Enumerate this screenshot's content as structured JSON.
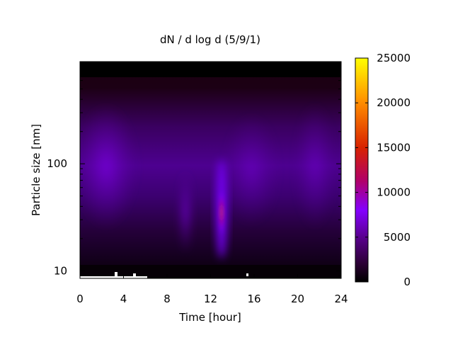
{
  "chart_data": {
    "type": "heatmap",
    "title": "dN / d log d (5/9/1)",
    "xlabel": "Time [hour]",
    "ylabel": "Particle size [nm]",
    "x_ticks": [
      0,
      4,
      8,
      12,
      16,
      20,
      24
    ],
    "xlim": [
      0,
      24
    ],
    "y_scale": "log",
    "ylim": [
      8.5,
      900
    ],
    "y_tick_labels": [
      {
        "value": 10,
        "label": "10"
      },
      {
        "value": 100,
        "label": "100"
      }
    ],
    "colorbar": {
      "ticks": [
        0,
        5000,
        10000,
        15000,
        20000,
        25000
      ],
      "range": [
        0,
        25000
      ],
      "colors": [
        "#000000",
        "#2b0033",
        "#5a008f",
        "#8400ff",
        "#b0006a",
        "#d82200",
        "#ff8c00",
        "#ffff00"
      ]
    },
    "grid": false,
    "features": [
      {
        "time": 13.0,
        "size_range": [
          25,
          60
        ],
        "value": 12000,
        "note": "peak"
      },
      {
        "time": 9.7,
        "size_range": [
          20,
          60
        ],
        "value": 6000
      },
      {
        "time": 3.0,
        "size_range": [
          40,
          150
        ],
        "value": 5000
      }
    ]
  }
}
